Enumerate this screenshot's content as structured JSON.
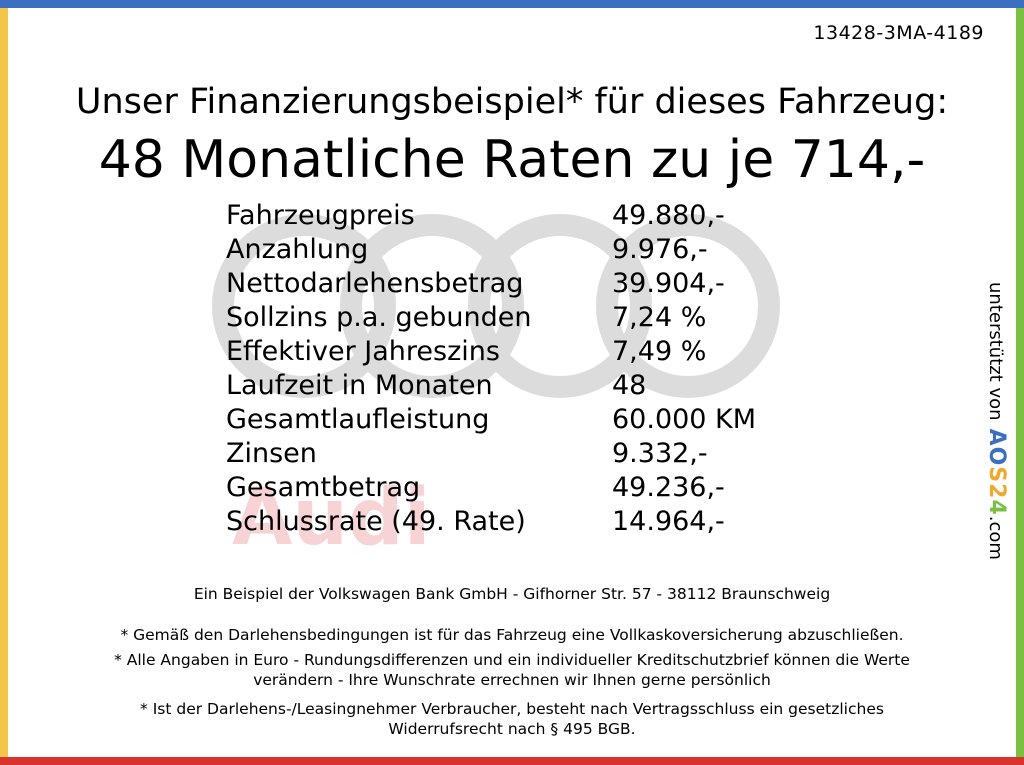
{
  "vehicle_id": "13428-3MA-4189",
  "heading": {
    "line1": "Unser Finanzierungsbeispiel* für dieses Fahrzeug:",
    "line2": "48 Monatliche Raten zu je 714,-"
  },
  "logo": {
    "brand_text": "Audi",
    "ring_color": "#dcdcdc",
    "text_color": "#f7d3d6"
  },
  "finance_rows": [
    {
      "label": "Fahrzeugpreis",
      "value": "49.880,-"
    },
    {
      "label": "Anzahlung",
      "value": "9.976,-"
    },
    {
      "label": "Nettodarlehensbetrag",
      "value": "39.904,-"
    },
    {
      "label": "Sollzins p.a. gebunden",
      "value": "7,24 %"
    },
    {
      "label": "Effektiver Jahreszins",
      "value": "7,49 %"
    },
    {
      "label": "Laufzeit in Monaten",
      "value": "48"
    },
    {
      "label": "Gesamtlaufleistung",
      "value": "60.000 KM"
    },
    {
      "label": "Zinsen",
      "value": "9.332,-"
    },
    {
      "label": "Gesamtbetrag",
      "value": "49.236,-"
    },
    {
      "label": "Schlussrate (49. Rate)",
      "value": "14.964,-"
    }
  ],
  "side_credit": {
    "prefix": "unterstützt von",
    "brand_part1": "AO",
    "brand_part2": "S2",
    "brand_part3": "4",
    "suffix": ".com"
  },
  "footer": {
    "lender": "Ein Beispiel der Volkswagen Bank GmbH - Gifhorner Str. 57 - 38112 Braunschweig",
    "note1": "* Gemäß den Darlehensbedingungen ist für das Fahrzeug eine Vollkaskoversicherung abzuschließen.",
    "note2_line1": "* Alle Angaben in Euro - Rundungsdifferenzen und ein individueller Kreditschutzbrief können die Werte",
    "note2_line2": "verändern - Ihre Wunschrate errechnen wir Ihnen gerne persönlich",
    "note3_line1": "* Ist der Darlehens-/Leasingnehmer Verbraucher, besteht nach Vertragsschluss ein gesetzliches",
    "note3_line2": "Widerrufsrecht nach § 495 BGB."
  },
  "colors": {
    "border_top": "#3b6fc0",
    "border_right": "#7ac143",
    "border_bottom": "#d9342b",
    "border_left": "#f5c54b"
  }
}
